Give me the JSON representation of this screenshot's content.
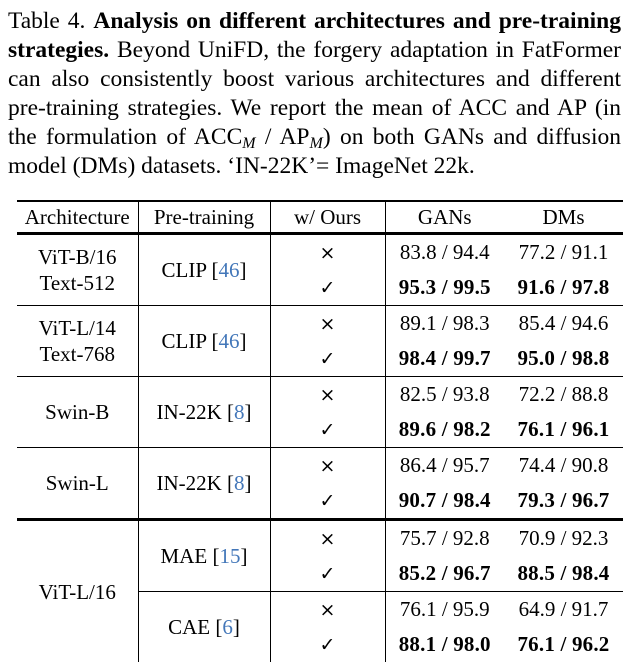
{
  "caption": {
    "label": "Table 4.",
    "title": "Analysis on different architectures and pre-training strategies.",
    "body_1": "Beyond UniFD, the forgery adaptation in FatFormer can also consistently boost various architectures and different pre-training strategies. We report the mean of ACC and AP (in the formulation of ACC",
    "sub_m1": "M",
    "body_2": " / AP",
    "sub_m2": "M",
    "body_3": ") on both GANs and diffusion model (DMs) datasets. ‘IN-22K’= ImageNet 22k."
  },
  "symbols": {
    "bracket_open": "[",
    "bracket_close": "]",
    "cross": "×",
    "check": "✓"
  },
  "colors": {
    "citation_blue": "#4377b9",
    "text": "#000000",
    "background": "#ffffff"
  },
  "table": {
    "headers": {
      "architecture": "Architecture",
      "pretraining": "Pre-training",
      "ours": "w/ Ours",
      "gans": "GANs",
      "dms": "DMs"
    },
    "groups": [
      {
        "arch": [
          "ViT-B/16",
          "Text-512"
        ],
        "subgroups": [
          {
            "pre": "CLIP",
            "ref": "46",
            "rows": [
              {
                "ours": "×",
                "gans": "83.8 / 94.4",
                "dms": "77.2 / 91.1",
                "bold": false
              },
              {
                "ours": "✓",
                "gans": "95.3 / 99.5",
                "dms": "91.6 / 97.8",
                "bold": true
              }
            ]
          }
        ]
      },
      {
        "arch": [
          "ViT-L/14",
          "Text-768"
        ],
        "subgroups": [
          {
            "pre": "CLIP",
            "ref": "46",
            "rows": [
              {
                "ours": "×",
                "gans": "89.1 / 98.3",
                "dms": "85.4 / 94.6",
                "bold": false
              },
              {
                "ours": "✓",
                "gans": "98.4 / 99.7",
                "dms": "95.0 / 98.8",
                "bold": true
              }
            ]
          }
        ]
      },
      {
        "arch": [
          "Swin-B"
        ],
        "subgroups": [
          {
            "pre": "IN-22K",
            "ref": "8",
            "rows": [
              {
                "ours": "×",
                "gans": "82.5 / 93.8",
                "dms": "72.2 / 88.8",
                "bold": false
              },
              {
                "ours": "✓",
                "gans": "89.6 / 98.2",
                "dms": "76.1 / 96.1",
                "bold": true
              }
            ]
          }
        ]
      },
      {
        "arch": [
          "Swin-L"
        ],
        "subgroups": [
          {
            "pre": "IN-22K",
            "ref": "8",
            "rows": [
              {
                "ours": "×",
                "gans": "86.4 / 95.7",
                "dms": "74.4 / 90.8",
                "bold": false
              },
              {
                "ours": "✓",
                "gans": "90.7 / 98.4",
                "dms": "79.3 / 96.7",
                "bold": true
              }
            ]
          }
        ]
      },
      {
        "arch": [
          "ViT-L/16"
        ],
        "subgroups": [
          {
            "pre": "MAE",
            "ref": "15",
            "rows": [
              {
                "ours": "×",
                "gans": "75.7 / 92.8",
                "dms": "70.9 / 92.3",
                "bold": false
              },
              {
                "ours": "✓",
                "gans": "85.2 / 96.7",
                "dms": "88.5 / 98.4",
                "bold": true
              }
            ]
          },
          {
            "pre": "CAE",
            "ref": "6",
            "rows": [
              {
                "ours": "×",
                "gans": "76.1 / 95.9",
                "dms": "64.9 / 91.7",
                "bold": false
              },
              {
                "ours": "✓",
                "gans": "88.1 / 98.0",
                "dms": "76.1 / 96.2",
                "bold": true
              }
            ]
          }
        ]
      }
    ]
  }
}
